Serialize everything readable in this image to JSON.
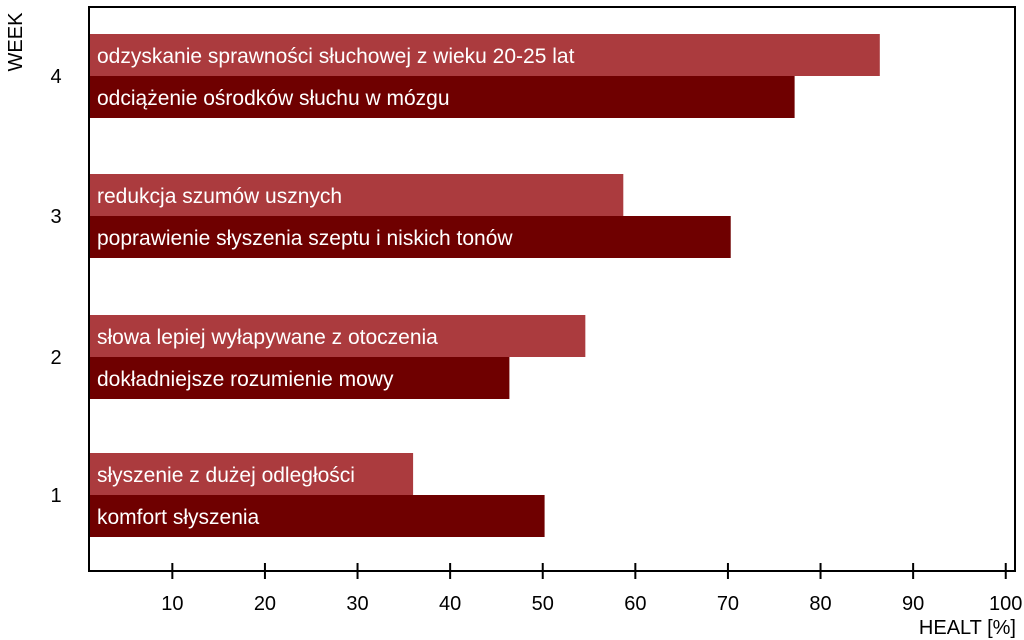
{
  "chart_data": {
    "type": "bar",
    "orientation": "horizontal",
    "title": "",
    "ylabel": "WEEK",
    "xlabel": "HEALT [%]",
    "xlim": [
      1,
      101
    ],
    "x_ticks": [
      10,
      20,
      30,
      40,
      50,
      60,
      70,
      80,
      90,
      100
    ],
    "grid": false,
    "categories": [
      "1",
      "2",
      "3",
      "4"
    ],
    "bars": [
      {
        "week": "1",
        "label": "słyszenie z dużej odległości",
        "value": 36,
        "color": "#ab3b3e"
      },
      {
        "week": "1",
        "label": "komfort słyszenia",
        "value": 50.2,
        "color": "#6f0000"
      },
      {
        "week": "2",
        "label": "słowa lepiej wyłapywane z otoczenia",
        "value": 54.6,
        "color": "#ab3b3e"
      },
      {
        "week": "2",
        "label": "dokładniejsze rozumienie mowy",
        "value": 46.4,
        "color": "#6f0000"
      },
      {
        "week": "3",
        "label": "redukcja szumów usznych",
        "value": 58.7,
        "color": "#ab3b3e"
      },
      {
        "week": "3",
        "label": "poprawienie słyszenia szeptu i niskich tonów",
        "value": 70.3,
        "color": "#6f0000"
      },
      {
        "week": "4",
        "label": "odzyskanie sprawności słuchowej z wieku 20-25 lat",
        "value": 86.4,
        "color": "#ab3b3e"
      },
      {
        "week": "4",
        "label": "odciążenie ośrodków słuchu w mózgu",
        "value": 77.2,
        "color": "#6f0000"
      }
    ]
  }
}
